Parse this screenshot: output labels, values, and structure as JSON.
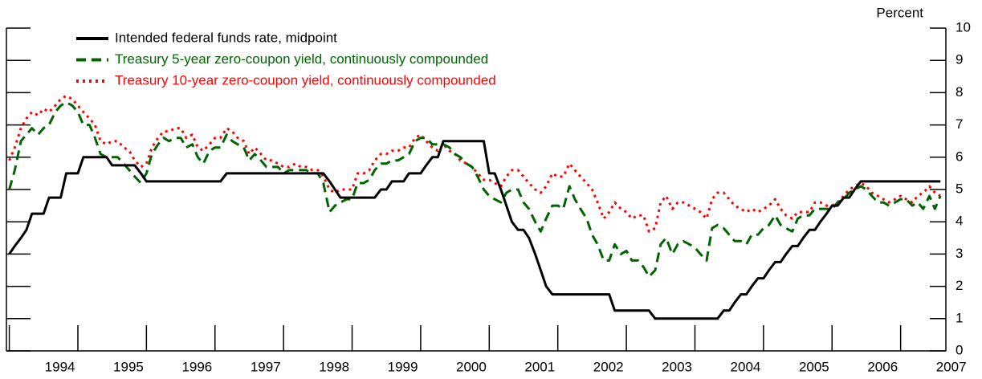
{
  "chart_data": {
    "type": "line",
    "y_axis_label": "Percent",
    "legend": "upper left",
    "xlim": [
      1993.958,
      2007.66
    ],
    "xticks": [
      1994,
      1995,
      1996,
      1997,
      1998,
      1999,
      2000,
      2001,
      2002,
      2003,
      2004,
      2005,
      2006,
      2007
    ],
    "ylim": [
      0,
      10
    ],
    "yticks": [
      0,
      1,
      2,
      3,
      4,
      5,
      6,
      7,
      8,
      9,
      10
    ],
    "x": [
      1994.0,
      1994.08,
      1994.17,
      1994.25,
      1994.33,
      1994.42,
      1994.5,
      1994.58,
      1994.67,
      1994.75,
      1994.83,
      1994.92,
      1995.0,
      1995.08,
      1995.17,
      1995.25,
      1995.33,
      1995.42,
      1995.5,
      1995.58,
      1995.67,
      1995.75,
      1995.83,
      1995.92,
      1996.0,
      1996.08,
      1996.17,
      1996.25,
      1996.33,
      1996.42,
      1996.5,
      1996.58,
      1996.67,
      1996.75,
      1996.83,
      1996.92,
      1997.0,
      1997.08,
      1997.17,
      1997.25,
      1997.33,
      1997.42,
      1997.5,
      1997.58,
      1997.67,
      1997.75,
      1997.83,
      1997.92,
      1998.0,
      1998.08,
      1998.17,
      1998.25,
      1998.33,
      1998.42,
      1998.5,
      1998.58,
      1998.67,
      1998.75,
      1998.83,
      1998.92,
      1999.0,
      1999.08,
      1999.17,
      1999.25,
      1999.33,
      1999.42,
      1999.5,
      1999.58,
      1999.67,
      1999.75,
      1999.83,
      1999.92,
      2000.0,
      2000.08,
      2000.17,
      2000.25,
      2000.33,
      2000.42,
      2000.5,
      2000.58,
      2000.67,
      2000.75,
      2000.83,
      2000.92,
      2001.0,
      2001.08,
      2001.17,
      2001.25,
      2001.33,
      2001.42,
      2001.5,
      2001.58,
      2001.67,
      2001.75,
      2001.83,
      2001.92,
      2002.0,
      2002.08,
      2002.17,
      2002.25,
      2002.33,
      2002.42,
      2002.5,
      2002.58,
      2002.67,
      2002.75,
      2002.83,
      2002.92,
      2003.0,
      2003.08,
      2003.17,
      2003.25,
      2003.33,
      2003.42,
      2003.5,
      2003.58,
      2003.67,
      2003.75,
      2003.83,
      2003.92,
      2004.0,
      2004.08,
      2004.17,
      2004.25,
      2004.33,
      2004.42,
      2004.5,
      2004.58,
      2004.67,
      2004.75,
      2004.83,
      2004.92,
      2005.0,
      2005.08,
      2005.17,
      2005.25,
      2005.33,
      2005.42,
      2005.5,
      2005.58,
      2005.67,
      2005.75,
      2005.83,
      2005.92,
      2006.0,
      2006.08,
      2006.17,
      2006.25,
      2006.33,
      2006.42,
      2006.5,
      2006.58,
      2006.67,
      2006.75,
      2006.83,
      2006.92,
      2007.0,
      2007.08,
      2007.17,
      2007.25,
      2007.33,
      2007.42,
      2007.5,
      2007.58
    ],
    "series": [
      {
        "name": "Intended federal funds rate, midpoint",
        "color": "#000000",
        "dash": "solid",
        "values": [
          3.0,
          3.25,
          3.5,
          3.75,
          4.25,
          4.25,
          4.25,
          4.75,
          4.75,
          4.75,
          5.5,
          5.5,
          5.5,
          6.0,
          6.0,
          6.0,
          6.0,
          6.0,
          5.75,
          5.75,
          5.75,
          5.75,
          5.75,
          5.5,
          5.25,
          5.25,
          5.25,
          5.25,
          5.25,
          5.25,
          5.25,
          5.25,
          5.25,
          5.25,
          5.25,
          5.25,
          5.25,
          5.25,
          5.5,
          5.5,
          5.5,
          5.5,
          5.5,
          5.5,
          5.5,
          5.5,
          5.5,
          5.5,
          5.5,
          5.5,
          5.5,
          5.5,
          5.5,
          5.5,
          5.5,
          5.5,
          5.25,
          5.0,
          4.75,
          4.75,
          4.75,
          4.75,
          4.75,
          4.75,
          4.75,
          5.0,
          5.0,
          5.25,
          5.25,
          5.25,
          5.5,
          5.5,
          5.5,
          5.75,
          6.0,
          6.0,
          6.5,
          6.5,
          6.5,
          6.5,
          6.5,
          6.5,
          6.5,
          6.5,
          5.5,
          5.5,
          5.0,
          4.5,
          4.0,
          3.75,
          3.75,
          3.5,
          3.0,
          2.5,
          2.0,
          1.75,
          1.75,
          1.75,
          1.75,
          1.75,
          1.75,
          1.75,
          1.75,
          1.75,
          1.75,
          1.75,
          1.25,
          1.25,
          1.25,
          1.25,
          1.25,
          1.25,
          1.25,
          1.0,
          1.0,
          1.0,
          1.0,
          1.0,
          1.0,
          1.0,
          1.0,
          1.0,
          1.0,
          1.0,
          1.0,
          1.25,
          1.25,
          1.5,
          1.75,
          1.75,
          2.0,
          2.25,
          2.25,
          2.5,
          2.75,
          2.75,
          3.0,
          3.25,
          3.25,
          3.5,
          3.75,
          3.75,
          4.0,
          4.25,
          4.5,
          4.5,
          4.75,
          4.75,
          5.0,
          5.25,
          5.25,
          5.25,
          5.25,
          5.25,
          5.25,
          5.25,
          5.25,
          5.25,
          5.25,
          5.25,
          5.25,
          5.25,
          5.25,
          5.25
        ]
      },
      {
        "name": "Treasury 5-year zero-coupon yield, continuously compounded",
        "color": "#006400",
        "dash": "dashed",
        "values": [
          5.0,
          5.6,
          6.5,
          6.7,
          6.9,
          6.7,
          6.9,
          7.0,
          7.4,
          7.6,
          7.7,
          7.6,
          7.4,
          7.0,
          7.0,
          6.6,
          6.1,
          6.0,
          6.0,
          6.0,
          5.8,
          5.6,
          5.4,
          5.2,
          5.5,
          6.1,
          6.4,
          6.6,
          6.5,
          6.6,
          6.6,
          6.3,
          6.4,
          6.0,
          5.8,
          6.2,
          6.3,
          6.3,
          6.7,
          6.5,
          6.4,
          6.3,
          5.9,
          6.1,
          5.9,
          5.7,
          5.7,
          5.7,
          5.5,
          5.6,
          5.6,
          5.6,
          5.6,
          5.5,
          5.5,
          5.2,
          4.3,
          4.5,
          4.6,
          4.7,
          4.7,
          5.2,
          5.2,
          5.3,
          5.6,
          5.8,
          5.8,
          5.9,
          5.9,
          6.0,
          6.1,
          6.5,
          6.6,
          6.6,
          6.4,
          6.4,
          6.4,
          6.3,
          6.1,
          6.0,
          5.8,
          5.7,
          5.4,
          5.0,
          4.8,
          4.7,
          4.6,
          4.9,
          5.0,
          5.0,
          4.6,
          4.4,
          4.0,
          3.7,
          4.1,
          4.5,
          4.5,
          4.4,
          5.1,
          4.7,
          4.4,
          4.1,
          3.6,
          3.3,
          2.8,
          2.8,
          3.3,
          3.0,
          3.1,
          2.8,
          2.8,
          2.6,
          2.3,
          2.5,
          3.3,
          3.5,
          3.0,
          3.3,
          3.4,
          3.3,
          3.2,
          3.0,
          2.8,
          3.8,
          3.9,
          3.8,
          3.6,
          3.4,
          3.4,
          3.3,
          3.6,
          3.6,
          3.8,
          3.9,
          4.2,
          3.9,
          3.8,
          3.7,
          4.1,
          4.2,
          4.2,
          4.4,
          4.4,
          4.4,
          4.4,
          4.6,
          4.7,
          4.9,
          5.0,
          5.1,
          5.0,
          4.8,
          4.6,
          4.6,
          4.5,
          4.6,
          4.7,
          4.7,
          4.5,
          4.6,
          4.4,
          4.8,
          4.4,
          4.8
        ]
      },
      {
        "name": "Treasury 10-year zero-coupon yield, continuously compounded",
        "color": "#ff0000",
        "dash": "dotted",
        "values": [
          5.9,
          6.3,
          6.9,
          7.2,
          7.4,
          7.3,
          7.5,
          7.4,
          7.6,
          7.8,
          7.9,
          7.8,
          7.6,
          7.4,
          7.2,
          7.0,
          6.5,
          6.4,
          6.5,
          6.5,
          6.3,
          6.2,
          5.9,
          5.7,
          5.8,
          6.3,
          6.6,
          6.8,
          6.8,
          6.9,
          6.9,
          6.6,
          6.7,
          6.3,
          6.2,
          6.4,
          6.6,
          6.6,
          6.9,
          6.8,
          6.6,
          6.5,
          6.1,
          6.3,
          6.1,
          5.9,
          5.9,
          5.8,
          5.7,
          5.7,
          5.8,
          5.7,
          5.7,
          5.6,
          5.6,
          5.4,
          5.0,
          4.9,
          5.0,
          5.0,
          5.0,
          5.5,
          5.5,
          5.6,
          5.9,
          6.1,
          6.1,
          6.2,
          6.2,
          6.3,
          6.3,
          6.6,
          6.7,
          6.5,
          6.3,
          6.2,
          6.4,
          6.2,
          6.1,
          5.9,
          5.8,
          5.7,
          5.5,
          5.3,
          5.3,
          5.2,
          5.1,
          5.4,
          5.6,
          5.6,
          5.4,
          5.2,
          5.0,
          4.9,
          5.1,
          5.5,
          5.4,
          5.4,
          5.8,
          5.6,
          5.4,
          5.2,
          5.0,
          4.6,
          4.1,
          4.3,
          4.6,
          4.4,
          4.3,
          4.1,
          4.2,
          4.2,
          3.7,
          3.8,
          4.6,
          4.8,
          4.4,
          4.6,
          4.6,
          4.5,
          4.4,
          4.3,
          4.1,
          4.7,
          4.9,
          4.9,
          4.7,
          4.5,
          4.4,
          4.3,
          4.4,
          4.3,
          4.4,
          4.5,
          4.7,
          4.4,
          4.2,
          4.1,
          4.3,
          4.3,
          4.3,
          4.6,
          4.6,
          4.5,
          4.5,
          4.6,
          4.8,
          5.0,
          5.1,
          5.2,
          5.1,
          4.9,
          4.8,
          4.7,
          4.6,
          4.7,
          4.8,
          4.7,
          4.6,
          4.8,
          4.9,
          5.1,
          4.9,
          4.8
        ]
      }
    ]
  }
}
